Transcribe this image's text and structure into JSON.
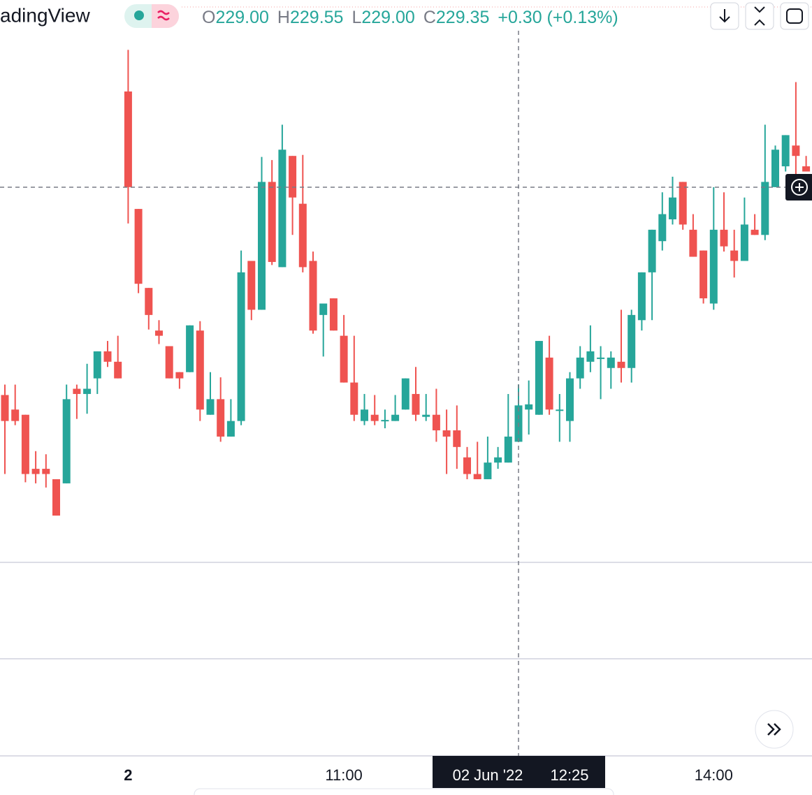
{
  "header": {
    "symbol": "adingView",
    "legend": [
      {
        "key": "O",
        "value": "229.00"
      },
      {
        "key": "H",
        "value": "229.55"
      },
      {
        "key": "L",
        "value": "229.00"
      },
      {
        "key": "C",
        "value": "229.35"
      }
    ],
    "change": "+0.30 (+0.13%)"
  },
  "chart_data": {
    "type": "candlestick",
    "up_color": "#26a69a",
    "down_color": "#ef5350",
    "ylim": [
      227.84,
      233.25
    ],
    "categories": [
      null,
      null,
      null,
      null,
      null,
      null,
      null,
      null,
      null,
      null,
      null,
      null,
      "2",
      null,
      null,
      null,
      null,
      null,
      null,
      null,
      null,
      null,
      null,
      null,
      null,
      null,
      null,
      null,
      null,
      null,
      null,
      null,
      null,
      "11:00",
      null,
      null,
      null,
      null,
      null,
      null,
      null,
      null,
      null,
      null,
      null,
      null,
      null,
      null,
      null,
      null,
      null,
      null,
      null,
      null,
      null,
      null,
      null,
      null,
      null,
      null,
      null,
      null,
      null,
      null,
      null,
      null,
      null,
      null,
      null,
      "14:00",
      null,
      null,
      null,
      null,
      null,
      null,
      null,
      null,
      null
    ],
    "ohlc": [
      [
        229.45,
        229.55,
        228.69,
        229.2
      ],
      [
        229.31,
        229.55,
        229.16,
        229.2
      ],
      [
        229.26,
        229.26,
        228.61,
        228.69
      ],
      [
        228.74,
        228.91,
        228.6,
        228.69
      ],
      [
        228.74,
        228.88,
        228.56,
        228.69
      ],
      [
        228.64,
        228.64,
        228.29,
        228.29
      ],
      [
        228.6,
        229.55,
        228.6,
        229.41
      ],
      [
        229.51,
        229.55,
        229.22,
        229.46
      ],
      [
        229.46,
        229.75,
        229.27,
        229.51
      ],
      [
        229.61,
        229.87,
        229.46,
        229.87
      ],
      [
        229.87,
        229.97,
        229.72,
        229.77
      ],
      [
        229.77,
        230.02,
        229.61,
        229.61
      ],
      [
        232.37,
        232.77,
        231.1,
        231.45
      ],
      [
        231.24,
        231.24,
        230.43,
        230.52
      ],
      [
        230.48,
        230.48,
        230.08,
        230.22
      ],
      [
        230.07,
        230.17,
        229.94,
        230.02
      ],
      [
        229.92,
        229.92,
        229.61,
        229.61
      ],
      [
        229.67,
        229.67,
        229.51,
        229.61
      ],
      [
        229.67,
        230.12,
        229.67,
        230.12
      ],
      [
        230.07,
        230.16,
        229.2,
        229.31
      ],
      [
        229.26,
        229.67,
        229.26,
        229.41
      ],
      [
        229.41,
        229.62,
        229.0,
        229.05
      ],
      [
        229.05,
        229.41,
        229.05,
        229.2
      ],
      [
        229.2,
        230.84,
        229.16,
        230.63
      ],
      [
        230.74,
        230.74,
        230.17,
        230.27
      ],
      [
        230.27,
        231.74,
        230.27,
        231.5
      ],
      [
        231.5,
        231.71,
        230.7,
        230.73
      ],
      [
        230.68,
        232.05,
        230.68,
        231.81
      ],
      [
        231.75,
        231.75,
        230.99,
        231.35
      ],
      [
        231.29,
        231.76,
        230.63,
        230.68
      ],
      [
        230.74,
        230.83,
        230.04,
        230.07
      ],
      [
        230.22,
        230.33,
        229.82,
        230.33
      ],
      [
        230.38,
        230.38,
        230.07,
        230.07
      ],
      [
        230.02,
        230.22,
        229.57,
        229.57
      ],
      [
        229.57,
        230.02,
        229.2,
        229.26
      ],
      [
        229.2,
        229.46,
        229.16,
        229.31
      ],
      [
        229.26,
        229.45,
        229.16,
        229.2
      ],
      [
        229.2,
        229.31,
        229.13,
        229.21
      ],
      [
        229.2,
        229.45,
        229.2,
        229.26
      ],
      [
        229.31,
        229.61,
        229.31,
        229.61
      ],
      [
        229.46,
        229.72,
        229.2,
        229.26
      ],
      [
        229.24,
        229.46,
        229.2,
        229.26
      ],
      [
        229.26,
        229.51,
        229.0,
        229.11
      ],
      [
        229.11,
        229.31,
        228.69,
        229.05
      ],
      [
        229.11,
        229.35,
        228.74,
        228.95
      ],
      [
        228.85,
        228.95,
        228.64,
        228.69
      ],
      [
        228.69,
        229.0,
        228.64,
        228.64
      ],
      [
        228.64,
        229.05,
        228.64,
        228.8
      ],
      [
        228.8,
        228.95,
        228.74,
        228.85
      ],
      [
        228.8,
        229.46,
        228.8,
        229.05
      ],
      [
        229.0,
        229.55,
        229.0,
        229.35
      ],
      [
        229.31,
        229.59,
        229.07,
        229.36
      ],
      [
        229.26,
        229.97,
        229.26,
        229.97
      ],
      [
        229.81,
        230.02,
        229.26,
        229.31
      ],
      [
        229.31,
        229.46,
        229.0,
        229.31
      ],
      [
        229.2,
        229.67,
        229.0,
        229.61
      ],
      [
        229.61,
        229.92,
        229.51,
        229.81
      ],
      [
        229.77,
        230.12,
        229.67,
        229.87
      ],
      [
        229.81,
        229.92,
        229.41,
        229.81
      ],
      [
        229.71,
        229.87,
        229.51,
        229.81
      ],
      [
        229.77,
        230.27,
        229.57,
        229.71
      ],
      [
        229.71,
        230.27,
        229.57,
        230.22
      ],
      [
        230.17,
        230.63,
        230.07,
        230.63
      ],
      [
        230.63,
        231.04,
        230.17,
        231.04
      ],
      [
        230.93,
        231.4,
        230.84,
        231.19
      ],
      [
        231.14,
        231.55,
        231.09,
        231.35
      ],
      [
        231.5,
        231.5,
        231.04,
        231.09
      ],
      [
        231.04,
        231.19,
        230.78,
        230.78
      ],
      [
        230.84,
        230.84,
        230.33,
        230.38
      ],
      [
        230.33,
        231.45,
        230.27,
        231.04
      ],
      [
        231.04,
        231.4,
        230.83,
        230.88
      ],
      [
        230.84,
        231.04,
        230.58,
        230.74
      ],
      [
        230.74,
        231.35,
        230.74,
        231.09
      ],
      [
        231.04,
        231.19,
        230.99,
        230.99
      ],
      [
        230.99,
        232.05,
        230.94,
        231.5
      ],
      [
        231.45,
        231.85,
        231.45,
        231.81
      ],
      [
        231.65,
        231.95,
        231.6,
        231.95
      ],
      [
        231.85,
        232.46,
        231.5,
        231.75
      ],
      [
        231.65,
        231.75,
        231.6,
        231.6
      ]
    ]
  },
  "crosshair_label": {
    "date": "02 Jun '22",
    "time": "12:25"
  }
}
